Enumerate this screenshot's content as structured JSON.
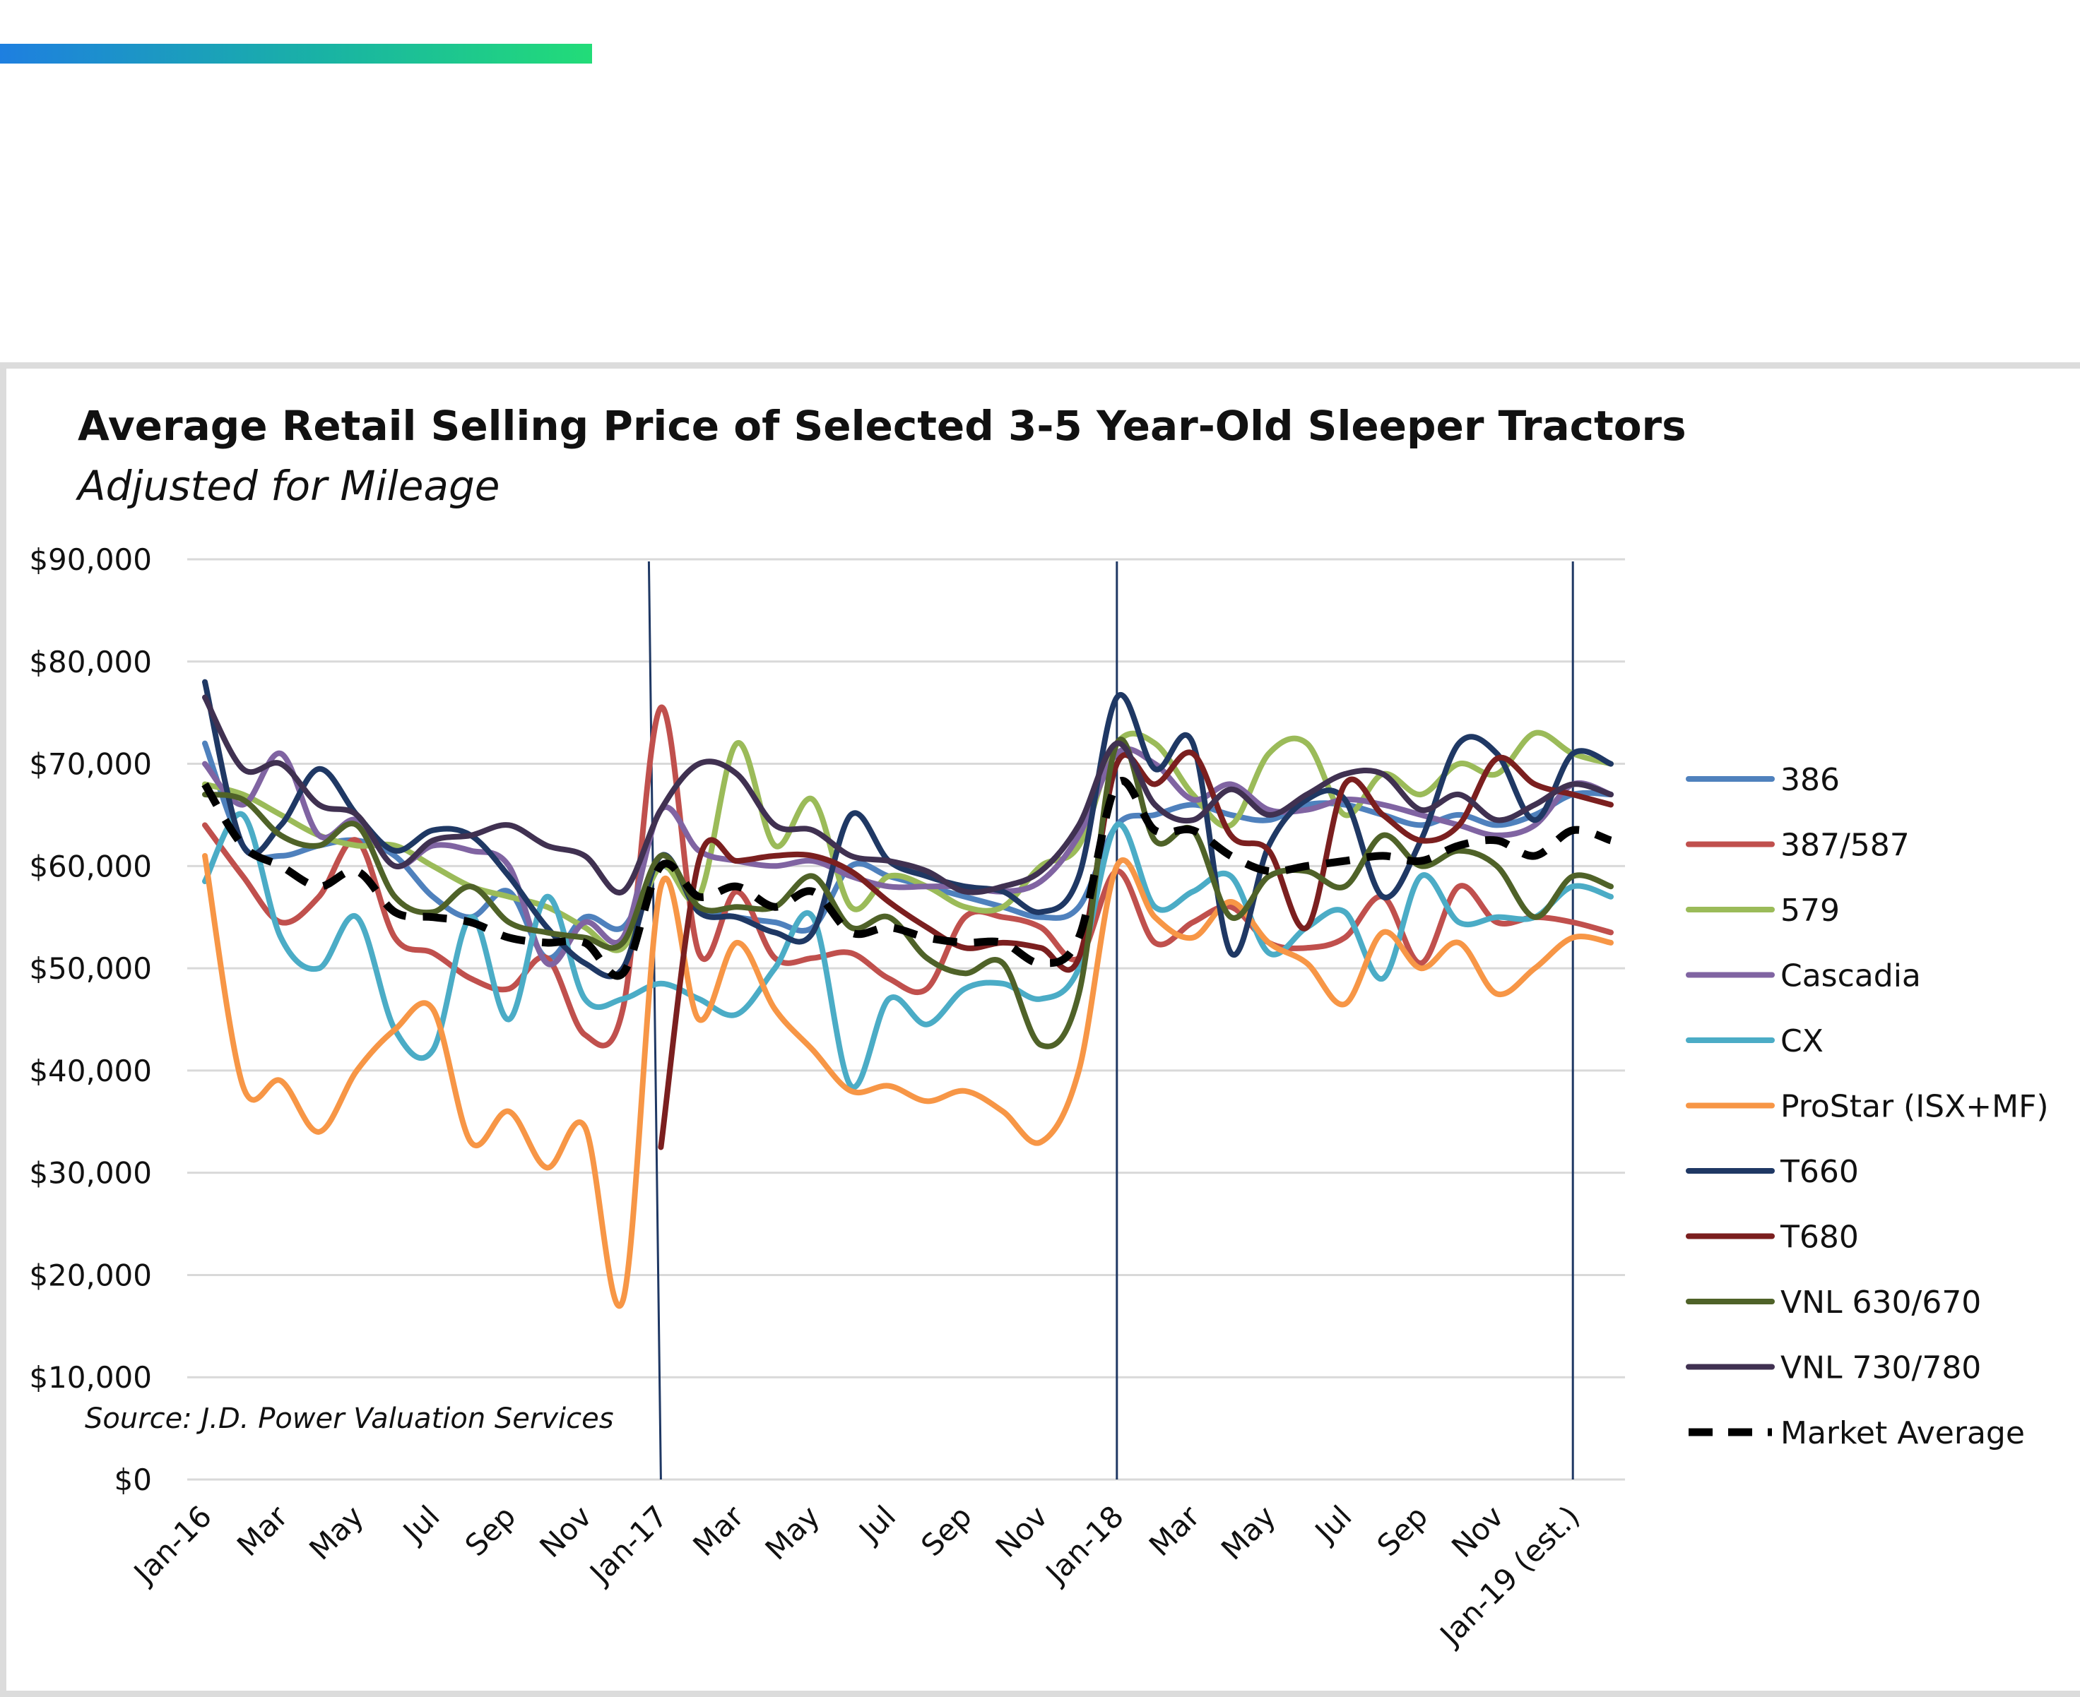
{
  "chart_data": {
    "type": "line",
    "title": "Average Retail Selling Price of Selected 3-5 Year-Old Sleeper Tractors",
    "subtitle": "Adjusted for Mileage",
    "source": "Source: J.D. Power Valuation Services",
    "xlabel": "",
    "ylabel": "",
    "ylim": [
      0,
      90000
    ],
    "y_ticks": [
      0,
      10000,
      20000,
      30000,
      40000,
      50000,
      60000,
      70000,
      80000,
      90000
    ],
    "y_tick_labels": [
      "$0",
      "$10,000",
      "$20,000",
      "$30,000",
      "$40,000",
      "$50,000",
      "$60,000",
      "$70,000",
      "$80,000",
      "$90,000"
    ],
    "x_tick_labels": [
      "Jan-16",
      "Mar",
      "May",
      "Jul",
      "Sep",
      "Nov",
      "Jan-17",
      "Mar",
      "May",
      "Jul",
      "Sep",
      "Nov",
      "Jan-18",
      "Mar",
      "May",
      "Jul",
      "Sep",
      "Nov",
      "Jan-19 (est.)"
    ],
    "grid": true,
    "legend_position": "right",
    "period_dividers": [
      "Jan-17",
      "Jan-18",
      "Jan-19 (est.)"
    ],
    "x": [
      "Jan-16",
      "Feb-16",
      "Mar-16",
      "Apr-16",
      "May-16",
      "Jun-16",
      "Jul-16",
      "Aug-16",
      "Sep-16",
      "Oct-16",
      "Nov-16",
      "Dec-16",
      "Jan-17",
      "Feb-17",
      "Mar-17",
      "Apr-17",
      "May-17",
      "Jun-17",
      "Jul-17",
      "Aug-17",
      "Sep-17",
      "Oct-17",
      "Nov-17",
      "Dec-17",
      "Jan-18",
      "Feb-18",
      "Mar-18",
      "Apr-18",
      "May-18",
      "Jun-18",
      "Jul-18",
      "Aug-18",
      "Sep-18",
      "Oct-18",
      "Nov-18",
      "Dec-18",
      "Jan-19",
      "Feb-19"
    ],
    "series": [
      {
        "name": "386",
        "color": "#4f81bd",
        "dashed": false,
        "values": [
          72000,
          62000,
          61000,
          62000,
          62500,
          61000,
          57000,
          55000,
          57500,
          51000,
          55000,
          54000,
          60000,
          56000,
          55000,
          54500,
          54000,
          60000,
          59000,
          58000,
          57000,
          56000,
          55000,
          56000,
          64000,
          65000,
          66000,
          65000,
          64500,
          66000,
          66000,
          65000,
          64000,
          65000,
          64000,
          65000,
          67000,
          67000
        ]
      },
      {
        "name": "387/587",
        "color": "#c0504d",
        "dashed": false,
        "values": [
          64000,
          59000,
          54500,
          57000,
          62500,
          53000,
          51500,
          49000,
          48000,
          51000,
          43500,
          46000,
          75500,
          51500,
          57500,
          51000,
          51000,
          51500,
          49000,
          48000,
          55000,
          55000,
          54000,
          51000,
          59500,
          52500,
          54500,
          56000,
          52500,
          52000,
          53000,
          57000,
          50500,
          58000,
          54500,
          55000,
          54500,
          53500
        ]
      },
      {
        "name": "579",
        "color": "#9bbb59",
        "dashed": false,
        "values": [
          68000,
          67000,
          65000,
          63000,
          62000,
          62000,
          60000,
          58000,
          57000,
          56000,
          54000,
          52000,
          60000,
          57000,
          72000,
          62000,
          66500,
          56000,
          59000,
          58000,
          56000,
          56000,
          60000,
          62000,
          72000,
          72000,
          67000,
          64000,
          71000,
          72000,
          65000,
          69000,
          67000,
          70000,
          69000,
          73000,
          71000,
          70000
        ]
      },
      {
        "name": "Cascadia",
        "color": "#8064a2",
        "dashed": false,
        "values": [
          70000,
          66000,
          71000,
          63000,
          64500,
          60000,
          62000,
          61500,
          60000,
          50500,
          54500,
          53000,
          65500,
          61500,
          60500,
          60000,
          60500,
          59000,
          58000,
          58000,
          58000,
          57500,
          58500,
          63000,
          71000,
          70000,
          66500,
          68000,
          65500,
          65500,
          66500,
          66000,
          65000,
          64000,
          63000,
          64000,
          68000,
          67000
        ]
      },
      {
        "name": "CX",
        "color": "#4bacc6",
        "dashed": false,
        "values": [
          58500,
          65000,
          53000,
          50000,
          55000,
          44000,
          42000,
          55000,
          45000,
          57000,
          47000,
          47000,
          48500,
          47000,
          45500,
          50000,
          55000,
          38500,
          47000,
          44500,
          48000,
          48500,
          47000,
          50000,
          64000,
          56000,
          57500,
          59000,
          51500,
          54000,
          55500,
          49000,
          59000,
          54500,
          55000,
          55000,
          58000,
          57000
        ]
      },
      {
        "name": "ProStar (ISX+MF)",
        "color": "#f79646",
        "dashed": false,
        "values": [
          61000,
          38500,
          39000,
          34000,
          40000,
          44000,
          46000,
          33000,
          36000,
          30500,
          34500,
          17500,
          58000,
          45000,
          52500,
          46000,
          42000,
          38000,
          38500,
          37000,
          38000,
          36000,
          33000,
          40000,
          60000,
          55000,
          53000,
          56500,
          52500,
          50500,
          46500,
          53500,
          50000,
          52500,
          47500,
          50000,
          53000,
          52500
        ]
      },
      {
        "name": "T660",
        "color": "#1f3864",
        "dashed": false,
        "values": [
          78000,
          62000,
          64000,
          69500,
          65000,
          61500,
          63500,
          63000,
          59000,
          54000,
          50500,
          50000,
          61000,
          55500,
          55000,
          53500,
          53500,
          65000,
          60500,
          59000,
          58000,
          57500,
          55500,
          59000,
          76500,
          69500,
          72000,
          51500,
          62000,
          66500,
          66500,
          57000,
          62500,
          72000,
          71000,
          64500,
          71000,
          70000
        ]
      },
      {
        "name": "T680",
        "color": "#7b1f1f",
        "dashed": false,
        "values": [
          null,
          null,
          null,
          null,
          null,
          null,
          null,
          null,
          null,
          null,
          null,
          null,
          32500,
          60500,
          60500,
          61000,
          61000,
          59500,
          56500,
          54000,
          52000,
          52500,
          52000,
          51000,
          70000,
          68000,
          71000,
          63000,
          61500,
          54000,
          68000,
          65000,
          62500,
          64000,
          70500,
          68000,
          67000,
          66000
        ]
      },
      {
        "name": "VNL 630/670",
        "color": "#4f6228",
        "dashed": false,
        "values": [
          67000,
          66500,
          63000,
          62000,
          64000,
          57000,
          55500,
          58000,
          54500,
          53500,
          53000,
          52500,
          61000,
          56000,
          56000,
          56000,
          59000,
          54000,
          55000,
          51000,
          49500,
          50500,
          42500,
          47500,
          72000,
          62500,
          63500,
          55000,
          59000,
          59500,
          58000,
          63000,
          60000,
          61500,
          60000,
          55000,
          59000,
          58000
        ]
      },
      {
        "name": "VNL 730/780",
        "color": "#403151",
        "dashed": false,
        "values": [
          76500,
          69500,
          70000,
          66000,
          65000,
          60000,
          62500,
          63000,
          64000,
          62000,
          61000,
          57500,
          65500,
          70000,
          69000,
          64000,
          63500,
          61000,
          60500,
          59500,
          57500,
          58000,
          59500,
          64000,
          72000,
          66000,
          64500,
          67500,
          65000,
          67000,
          69000,
          69000,
          65500,
          67000,
          64500,
          66000,
          68000,
          67000
        ]
      },
      {
        "name": "Market Average",
        "color": "#000000",
        "dashed": true,
        "values": [
          68000,
          62000,
          60000,
          58000,
          59500,
          55500,
          55000,
          54500,
          53000,
          52500,
          52500,
          49500,
          60000,
          57000,
          58000,
          56000,
          57500,
          53500,
          54000,
          53000,
          52500,
          52500,
          50500,
          53000,
          68000,
          63500,
          63500,
          61000,
          59500,
          60000,
          60500,
          61000,
          60500,
          62000,
          62500,
          61000,
          63500,
          62500
        ]
      }
    ]
  }
}
